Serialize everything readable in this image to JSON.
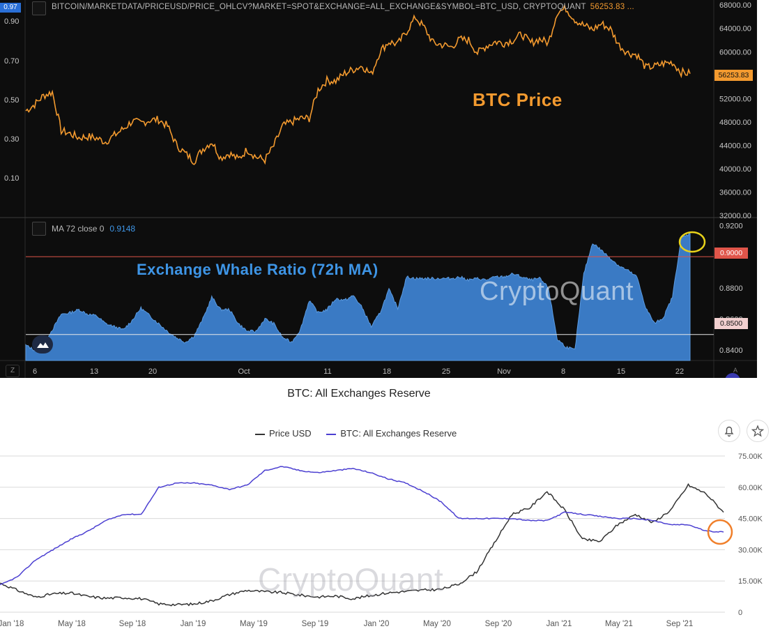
{
  "top_panel": {
    "symbol_text": "BITCOIN/MARKETDATA/PRICEUSD/PRICE_OHLCV?MARKET=SPOT&EXCHANGE=ALL_EXCHANGE&SYMBOL=BTC_USD, CRYPTOQUANT",
    "last_price_text": "56253.83 ...",
    "price_tag": "56253.83",
    "left_axis_tag": "0.97",
    "price_label": "BTC Price",
    "price_color": "#f39a2f",
    "indicator_text": "MA 72 close 0",
    "indicator_value": "0.9148",
    "indicator_label": "Exchange Whale Ratio (72h MA)",
    "indicator_color": "#3e95e6",
    "watermark": "CryptoQuant",
    "tag_090": "0.9000",
    "tag_085": "0.8500",
    "z_label": "Z",
    "a_label": "A"
  },
  "bottom_panel": {
    "title": "BTC: All Exchanges Reserve",
    "legend": [
      {
        "label": "Price USD",
        "color": "#333333"
      },
      {
        "label": "BTC: All Exchanges Reserve",
        "color": "#4b3fd1"
      }
    ],
    "watermark": "CryptoQuant",
    "bell_icon": "bell-icon",
    "star_icon": "star-icon",
    "highlight_color": "#f07f2a"
  },
  "chart_data": [
    {
      "type": "line",
      "title": "BTC Price",
      "x_ticks": [
        "6",
        "13",
        "20",
        "Oct",
        "11",
        "18",
        "25",
        "Nov",
        "8",
        "15",
        "22"
      ],
      "y_ticks_right": [
        "68000.00",
        "64000.00",
        "60000.00",
        "56000.00",
        "52000.00",
        "48000.00",
        "44000.00",
        "40000.00",
        "36000.00",
        "32000.00"
      ],
      "y_ticks_left": [
        "0.90",
        "0.70",
        "0.50",
        "0.30",
        "0.10"
      ],
      "ylim": [
        32000,
        68500
      ],
      "series": [
        {
          "name": "BTC Price",
          "values": [
            49900,
            51000,
            52500,
            53100,
            46500,
            46000,
            45300,
            45500,
            45200,
            44600,
            45700,
            46800,
            48100,
            47800,
            48300,
            48400,
            47300,
            44100,
            42600,
            41300,
            43400,
            44600,
            41900,
            42600,
            41600,
            43300,
            42000,
            41500,
            43900,
            47300,
            48000,
            48600,
            48600,
            53500,
            55100,
            55000,
            56300,
            57000,
            57600,
            56100,
            60100,
            61700,
            61300,
            63500,
            65900,
            64100,
            61500,
            61200,
            60800,
            62100,
            62000,
            59800,
            61000,
            61700,
            61500,
            62000,
            63000,
            61500,
            62200,
            61500,
            66800,
            67400,
            65500,
            64500,
            63800,
            64800,
            63900,
            61100,
            59800,
            59500,
            57300,
            57500,
            58000,
            58200,
            56500,
            56253
          ]
        }
      ]
    },
    {
      "type": "area",
      "title": "Exchange Whale Ratio (72h MA)",
      "y_ticks": [
        "0.9200",
        "0.9000",
        "0.8800",
        "0.8600",
        "0.8500",
        "0.8400"
      ],
      "ylim": [
        0.8333,
        0.9207
      ],
      "reference_lines": [
        0.9,
        0.85
      ],
      "series": [
        {
          "name": "MA 72 close 0",
          "values": [
            0.843,
            0.84,
            0.845,
            0.853,
            0.863,
            0.864,
            0.866,
            0.863,
            0.862,
            0.857,
            0.855,
            0.853,
            0.859,
            0.867,
            0.862,
            0.857,
            0.852,
            0.848,
            0.845,
            0.849,
            0.86,
            0.874,
            0.866,
            0.866,
            0.857,
            0.852,
            0.852,
            0.86,
            0.857,
            0.848,
            0.845,
            0.853,
            0.872,
            0.864,
            0.866,
            0.873,
            0.872,
            0.875,
            0.867,
            0.855,
            0.864,
            0.879,
            0.867,
            0.887,
            0.886,
            0.886,
            0.886,
            0.886,
            0.886,
            0.887,
            0.885,
            0.886,
            0.885,
            0.887,
            0.887,
            0.889,
            0.887,
            0.885,
            0.886,
            0.88,
            0.847,
            0.842,
            0.84,
            0.889,
            0.909,
            0.904,
            0.899,
            0.894,
            0.891,
            0.887,
            0.867,
            0.857,
            0.861,
            0.874,
            0.912,
            0.9148
          ]
        }
      ]
    },
    {
      "type": "line",
      "title": "BTC: All Exchanges Reserve",
      "x_ticks": [
        "Jan '18",
        "May '18",
        "Sep '18",
        "Jan '19",
        "May '19",
        "Sep '19",
        "Jan '20",
        "May '20",
        "Sep '20",
        "Jan '21",
        "May '21",
        "Sep '21"
      ],
      "y_ticks": [
        "75.00K",
        "60.00K",
        "45.00K",
        "30.00K",
        "15.00K",
        "0"
      ],
      "ylim": [
        0,
        75000
      ],
      "series": [
        {
          "name": "Price USD",
          "values": [
            14000,
            10500,
            7200,
            8800,
            9200,
            7500,
            6700,
            7000,
            6500,
            4000,
            3600,
            3900,
            5500,
            8500,
            10500,
            9800,
            9400,
            8200,
            7300,
            7800,
            6500,
            8000,
            9300,
            10000,
            10600,
            11000,
            13500,
            19300,
            33000,
            47000,
            50000,
            58000,
            49000,
            35000,
            34000,
            42000,
            47000,
            43000,
            49000,
            61000,
            57000,
            48000
          ]
        },
        {
          "name": "BTC: All Exchanges Reserve",
          "values": [
            13000,
            17000,
            25000,
            30000,
            35000,
            39000,
            44000,
            47000,
            47000,
            60000,
            62000,
            62000,
            61000,
            59000,
            61000,
            68000,
            70000,
            68000,
            67000,
            68000,
            69000,
            67000,
            64000,
            62000,
            58000,
            53000,
            45000,
            45000,
            45000,
            45000,
            44000,
            44000,
            48000,
            47000,
            46000,
            45000,
            45000,
            44000,
            42000,
            42000,
            39000,
            38500
          ]
        }
      ]
    }
  ]
}
